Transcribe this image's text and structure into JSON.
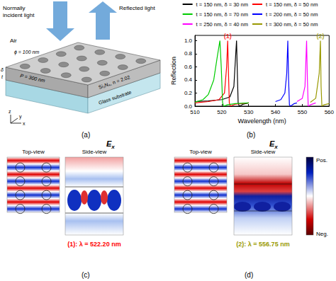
{
  "panel_labels": [
    "(a)",
    "(b)",
    "(c)",
    "(d)"
  ],
  "panel_a": {
    "incident": [
      "Normally",
      "incident light"
    ],
    "reflected": "Reflected light",
    "medium": "Air",
    "hole": "ϕ = 100 nm",
    "period": "P = 300 nm",
    "slab": "Si₃N₄, n = 2.02",
    "etch_depth": "δ",
    "thickness": "t",
    "substrate": "Glass substrate",
    "axes": [
      "z",
      "y",
      "x"
    ]
  },
  "chart_data": {
    "type": "line",
    "x_label": "Wavelength (nm)",
    "y_label": "Reflection",
    "xlim": [
      510,
      560
    ],
    "xticks": [
      510,
      520,
      530,
      540,
      550,
      560
    ],
    "ylim": [
      0,
      1.08
    ],
    "yticks": [
      {
        "value": 0,
        "label": "0.0"
      },
      {
        "value": 0.2,
        "label": "0.2"
      },
      {
        "value": 0.4,
        "label": "0.4"
      },
      {
        "value": 0.6,
        "label": "0.6"
      },
      {
        "value": 0.8,
        "label": "0.8"
      },
      {
        "value": 1,
        "label": "1.0"
      }
    ],
    "grid": false,
    "legend": "top",
    "series": [
      {
        "name": "t = 150 nm, δ = 30 nm",
        "color": "#000000",
        "x": [
          510,
          515,
          520,
          523,
          524.5,
          525.2,
          525.5,
          525.8,
          526.1,
          526.5,
          528,
          530
        ],
        "values": [
          0.07,
          0.08,
          0.1,
          0.14,
          0.3,
          0.8,
          1.0,
          0.5,
          0.05,
          0.0,
          0.03,
          0.05
        ]
      },
      {
        "name": "t = 150 nm, δ = 50 nm",
        "color": "#ff0000",
        "x": [
          510,
          515,
          519,
          521,
          521.8,
          522.2,
          522.5,
          522.8,
          523.2,
          525,
          530
        ],
        "values": [
          0.05,
          0.07,
          0.1,
          0.2,
          0.6,
          1.0,
          0.5,
          0.05,
          0.0,
          0.03,
          0.05
        ]
      },
      {
        "name": "t = 150 nm, δ = 70 nm",
        "color": "#00cc00",
        "x": [
          510,
          513,
          515,
          517,
          518.3,
          519.3,
          519.8,
          520.3,
          520.8,
          522,
          525,
          530
        ],
        "values": [
          0.06,
          0.1,
          0.18,
          0.4,
          0.75,
          1.0,
          0.6,
          0.05,
          0.0,
          0.02,
          0.04,
          0.05
        ]
      },
      {
        "name": "t = 200 nm, δ = 50 nm",
        "color": "#0000ff",
        "x": [
          540,
          542,
          543.5,
          544.2,
          544.6,
          544.9,
          545.2,
          545.6,
          547,
          548
        ],
        "values": [
          0.07,
          0.1,
          0.2,
          0.5,
          1.0,
          0.4,
          0.02,
          0.0,
          0.04,
          0.05
        ]
      },
      {
        "name": "t = 250 nm, δ = 40 nm",
        "color": "#ff00ff",
        "x": [
          548,
          550,
          551,
          551.6,
          551.9,
          552.2,
          553,
          555
        ],
        "values": [
          0.07,
          0.12,
          0.3,
          1.0,
          0.4,
          0.0,
          0.02,
          0.05
        ]
      },
      {
        "name": "t = 300 nm, δ = 50 nm",
        "color": "#999900",
        "x": [
          553,
          555,
          556.3,
          556.75,
          557,
          557.3,
          558,
          560
        ],
        "values": [
          0.06,
          0.12,
          0.5,
          1.0,
          0.3,
          0.0,
          0.02,
          0.04
        ]
      }
    ],
    "annotations": [
      {
        "text": "(1)",
        "x": 522.2,
        "y": 1.0,
        "color": "#ff0000"
      },
      {
        "text": "(2)",
        "x": 556.75,
        "y": 1.0,
        "color": "#999900"
      }
    ]
  },
  "panel_c": {
    "field": {
      "symbol": "E",
      "subscript": "x"
    },
    "top_view": "Top-view",
    "side_view": "Side-view",
    "caption": "(1): λ = 522.20 nm",
    "caption_color": "#ff0000"
  },
  "panel_d": {
    "field": {
      "symbol": "E",
      "subscript": "x"
    },
    "top_view": "Top-view",
    "side_view": "Side-view",
    "caption": "(2): λ = 556.75 nm",
    "caption_color": "#999900"
  },
  "colorbar": {
    "max_label": "Pos.",
    "min_label": "Neg."
  }
}
